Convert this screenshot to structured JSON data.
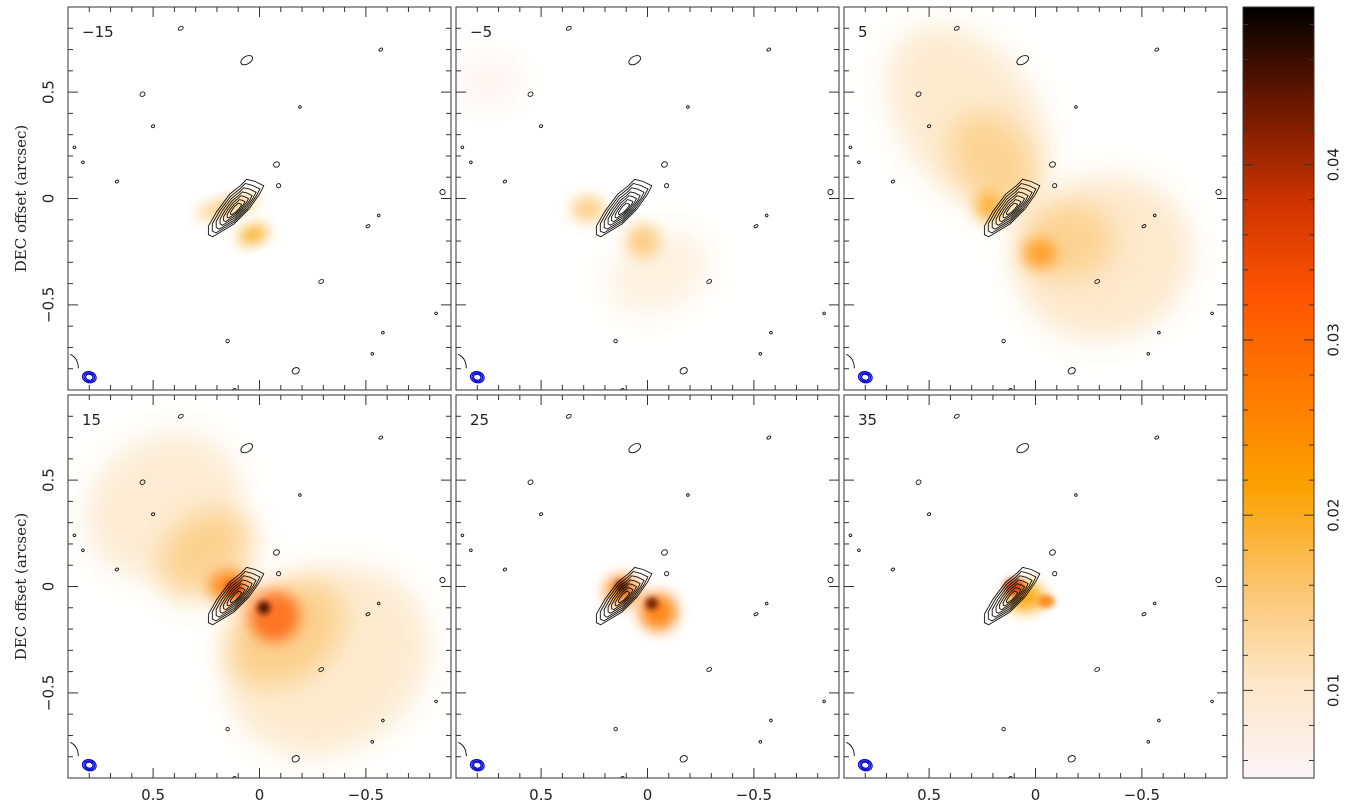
{
  "chart_data": {
    "type": "heatmap",
    "ylabel": "DEC offset (arcsec)",
    "x_range": [
      0.9,
      -0.9
    ],
    "y_range": [
      -0.9,
      0.9
    ],
    "x_ticks": [
      0.5,
      0,
      -0.5
    ],
    "x_tick_labels": [
      "0.5",
      "0",
      "−0.5"
    ],
    "y_ticks": [
      -0.5,
      0,
      0.5
    ],
    "y_tick_labels": [
      "−0.5",
      "0",
      "0.5"
    ],
    "colorbar": {
      "range": [
        0.005,
        0.049
      ],
      "ticks": [
        0.01,
        0.02,
        0.03,
        0.04
      ],
      "tick_labels": [
        "0.01",
        "0.02",
        "0.03",
        "0.04"
      ],
      "colormap": [
        "#fdf4fa",
        "#fde7c8",
        "#fbc46d",
        "#fba200",
        "#ff7a00",
        "#ff5500",
        "#cc3300",
        "#6a1800",
        "#000000"
      ]
    },
    "panels": [
      {
        "label": "−15"
      },
      {
        "label": "−5"
      },
      {
        "label": "5"
      },
      {
        "label": "15"
      },
      {
        "label": "25"
      },
      {
        "label": "35"
      }
    ],
    "beam_color": "#0000cc"
  }
}
